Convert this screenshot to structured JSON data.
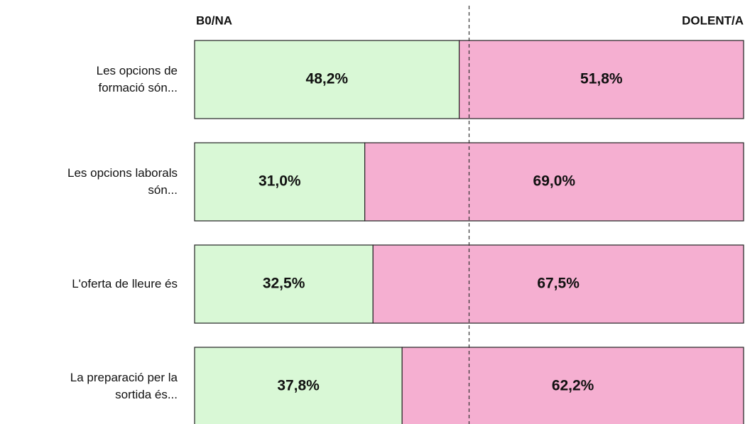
{
  "chart_data": {
    "type": "stacked_barh",
    "categories": [
      "Les opcions de\nformació són...",
      "Les opcions laborals\nsón...",
      "L'oferta de lleure és",
      "La preparació per la\nsortida és..."
    ],
    "series": [
      {
        "name": "B0/NA",
        "color": "#d9f8d6",
        "values": [
          48.2,
          31.0,
          32.5,
          37.8
        ],
        "value_labels": [
          "48,2%",
          "31,0%",
          "32,5%",
          "37,8%"
        ]
      },
      {
        "name": "DOLENT/A",
        "color": "#f5afd1",
        "values": [
          51.8,
          69.0,
          67.5,
          62.2
        ],
        "value_labels": [
          "51,8%",
          "69,0%",
          "67,5%",
          "62,2%"
        ]
      }
    ],
    "xlim": [
      0,
      100
    ],
    "reference_line": 50
  }
}
